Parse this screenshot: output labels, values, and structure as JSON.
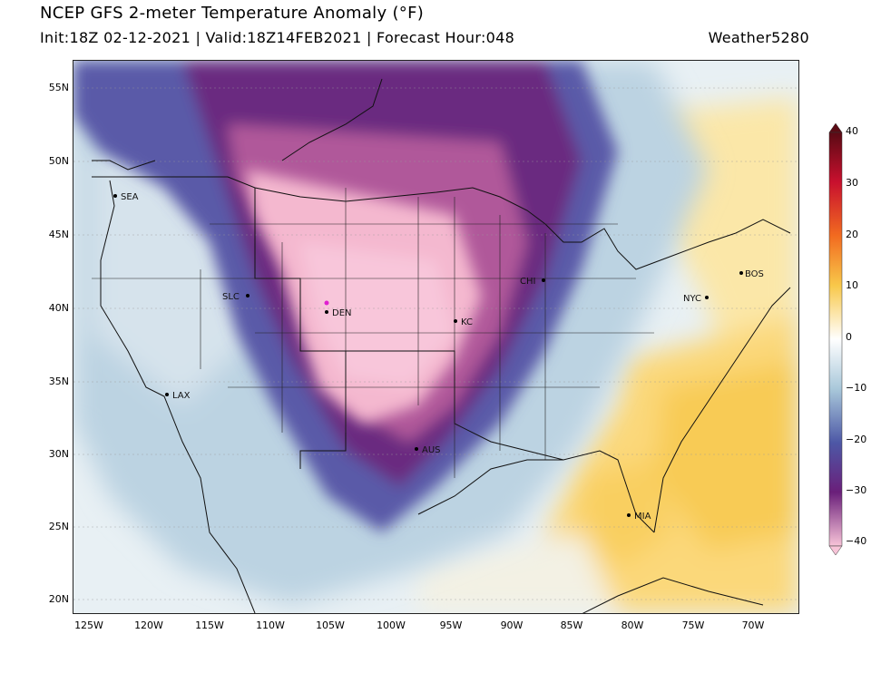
{
  "header": {
    "title": "NCEP GFS 2-meter Temperature Anomaly (°F)",
    "subtitle": "Init:18Z 02-12-2021 | Valid:18Z14FEB2021 | Forecast Hour:048",
    "brand": "Weather5280"
  },
  "map": {
    "lat_labels": [
      "55N",
      "50N",
      "45N",
      "40N",
      "35N",
      "30N",
      "25N",
      "20N"
    ],
    "lon_labels": [
      "125W",
      "120W",
      "115W",
      "110W",
      "105W",
      "100W",
      "95W",
      "90W",
      "85W",
      "80W",
      "75W",
      "70W"
    ],
    "cities": [
      {
        "code": "SEA"
      },
      {
        "code": "SLC"
      },
      {
        "code": "DEN"
      },
      {
        "code": "KC"
      },
      {
        "code": "CHI"
      },
      {
        "code": "NYC"
      },
      {
        "code": "BOS"
      },
      {
        "code": "LAX"
      },
      {
        "code": "AUS"
      },
      {
        "code": "MIA"
      }
    ]
  },
  "colorbar": {
    "tick_labels": [
      "40",
      "30",
      "20",
      "10",
      "0",
      "−10",
      "−20",
      "−30",
      "−40"
    ],
    "colors": {
      "extreme_warm": "#5a0a14",
      "warm_30": "#c8102e",
      "warm_20": "#f26b20",
      "warm_10": "#f8c84a",
      "neutral": "#ffffff",
      "cool_10": "#a9c8da",
      "cold_20": "#4d58a6",
      "cold_30": "#6a1f7a",
      "extreme_cold": "#f8c4d8"
    }
  }
}
